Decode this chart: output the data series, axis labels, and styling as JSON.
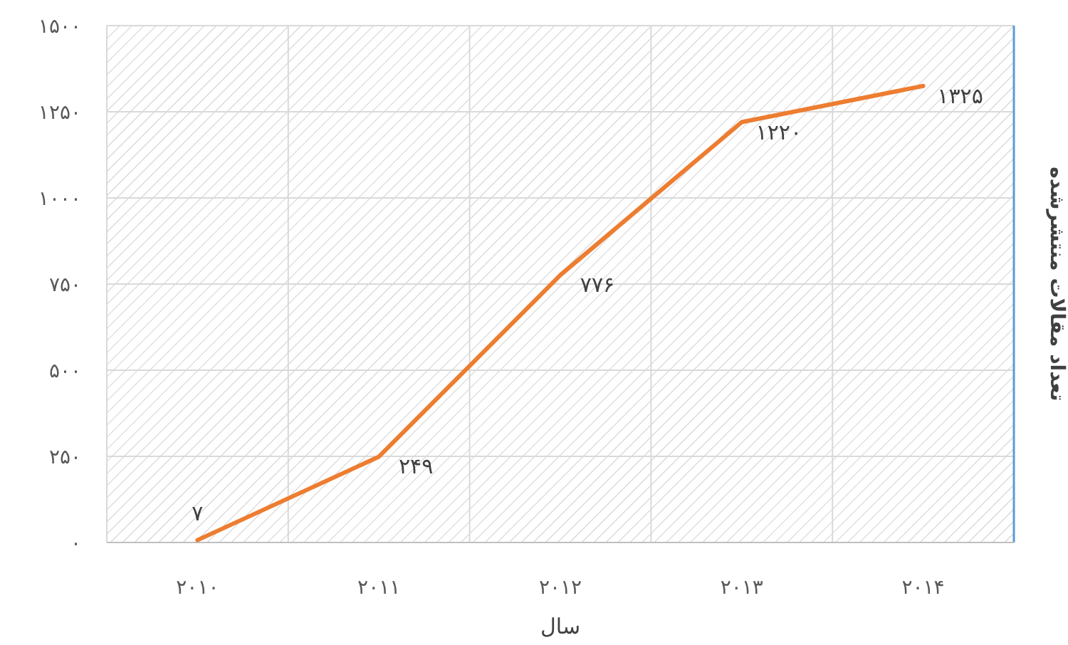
{
  "chart_data": {
    "type": "line",
    "xlabel": "سال",
    "ylabel": "تعداد مقالات منتشرشده",
    "categories": [
      "۲۰۱۰",
      "۲۰۱۱",
      "۲۰۱۲",
      "۲۰۱۳",
      "۲۰۱۴"
    ],
    "series": [
      {
        "color": "#ed7d31",
        "values": [
          7,
          249,
          776,
          1220,
          1325
        ],
        "value_labels": [
          "۷",
          "۲۴۹",
          "۷۷۶",
          "۱۲۲۰",
          "۱۳۲۵"
        ]
      }
    ],
    "ylim": [
      0,
      1500
    ],
    "yticks": [
      {
        "value": 0,
        "label": "۰"
      },
      {
        "value": 250,
        "label": "۲۵۰"
      },
      {
        "value": 500,
        "label": "۵۰۰"
      },
      {
        "value": 750,
        "label": "۷۵۰"
      },
      {
        "value": 1000,
        "label": "۱۰۰۰"
      },
      {
        "value": 1250,
        "label": "۱۲۵۰"
      },
      {
        "value": 1500,
        "label": "۱۵۰۰"
      }
    ],
    "grid": true,
    "marker": "none",
    "line_style": "solid"
  }
}
